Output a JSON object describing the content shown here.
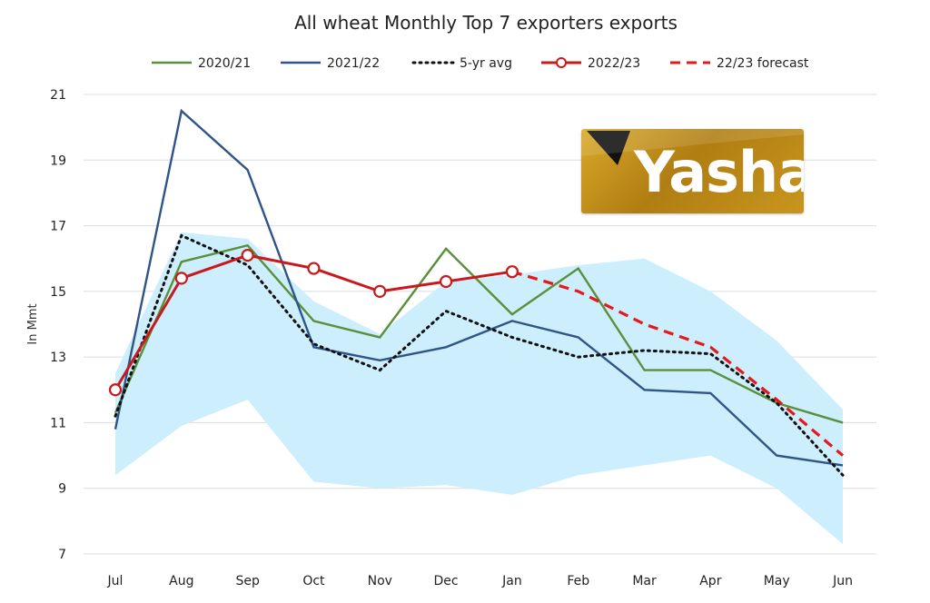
{
  "chart_data": {
    "type": "line",
    "title": "All wheat Monthly Top 7 exporters exports",
    "ylabel": "In Mmt",
    "xlabel": "",
    "categories": [
      "Jul",
      "Aug",
      "Sep",
      "Oct",
      "Nov",
      "Dec",
      "Jan",
      "Feb",
      "Mar",
      "Apr",
      "May",
      "Jun"
    ],
    "ylim": [
      7,
      21
    ],
    "yticks": [
      7,
      9,
      11,
      13,
      15,
      17,
      19,
      21
    ],
    "grid": "horizontal",
    "legend_position": "top",
    "band": {
      "color": "#cdeefc",
      "upper": [
        12.5,
        16.8,
        16.6,
        14.7,
        13.7,
        15.3,
        15.5,
        15.8,
        16.0,
        15.0,
        13.5,
        11.4
      ],
      "lower": [
        9.4,
        10.9,
        11.7,
        9.2,
        9.0,
        9.1,
        8.8,
        9.4,
        9.7,
        10.0,
        9.0,
        7.3
      ]
    },
    "series": [
      {
        "name": "2020/21",
        "color": "#5a8f3c",
        "style": "solid",
        "markers": false,
        "values": [
          11.3,
          15.9,
          16.4,
          14.1,
          13.6,
          16.3,
          14.3,
          15.7,
          12.6,
          12.6,
          11.6,
          11.0
        ]
      },
      {
        "name": "2021/22",
        "color": "#2f5487",
        "style": "solid",
        "markers": false,
        "values": [
          10.8,
          20.5,
          18.7,
          13.3,
          12.9,
          13.3,
          14.1,
          13.6,
          12.0,
          11.9,
          10.0,
          9.7
        ]
      },
      {
        "name": "5-yr avg",
        "color": "#111111",
        "style": "dotted",
        "markers": false,
        "values": [
          11.2,
          16.7,
          15.8,
          13.4,
          12.6,
          14.4,
          13.6,
          13.0,
          13.2,
          13.1,
          11.6,
          9.4
        ]
      },
      {
        "name": "2022/23",
        "color": "#c8191c",
        "style": "solid",
        "markers": true,
        "values": [
          12.0,
          15.4,
          16.1,
          15.7,
          15.0,
          15.3,
          15.6,
          null,
          null,
          null,
          null,
          null
        ]
      },
      {
        "name": "22/23 forecast",
        "color": "#e3191c",
        "style": "dashed",
        "markers": false,
        "values": [
          null,
          null,
          null,
          null,
          null,
          null,
          15.6,
          15.0,
          14.0,
          13.3,
          11.7,
          10.0
        ]
      }
    ]
  },
  "logo": {
    "text": "Yashar"
  },
  "colors": {
    "gold": "#c8961e",
    "band": "#cdeefc"
  }
}
